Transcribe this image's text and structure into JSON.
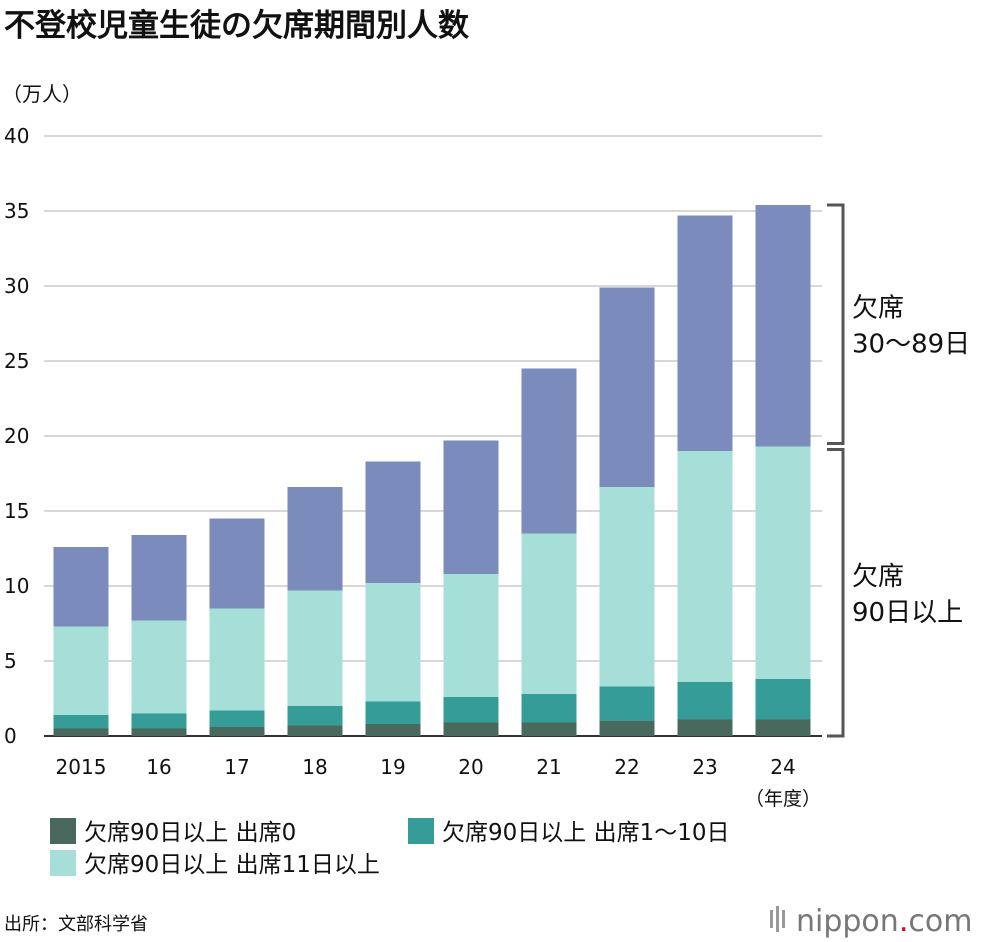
{
  "chart_data": {
    "type": "bar",
    "stacked": true,
    "title": "不登校児童生徒の欠席期間別人数",
    "ylabel": "（万人）",
    "xlabel": "",
    "ylim": [
      0,
      40
    ],
    "yticks": [
      0,
      5,
      10,
      15,
      20,
      25,
      30,
      35,
      40
    ],
    "grid": true,
    "categories": [
      "2015",
      "16",
      "17",
      "18",
      "19",
      "20",
      "21",
      "22",
      "23",
      "24"
    ],
    "category_suffix": "（年度）",
    "series": [
      {
        "name": "欠席90日以上 出席0",
        "color": "#49695f",
        "values": [
          0.5,
          0.5,
          0.6,
          0.7,
          0.8,
          0.9,
          0.9,
          1.0,
          1.1,
          1.1
        ]
      },
      {
        "name": "欠席90日以上 出席1〜10日",
        "color": "#369c98",
        "values": [
          0.9,
          1.0,
          1.1,
          1.3,
          1.5,
          1.7,
          1.9,
          2.3,
          2.5,
          2.7
        ]
      },
      {
        "name": "欠席90日以上 出席11日以上",
        "color": "#a6ded8",
        "values": [
          5.9,
          6.2,
          6.8,
          7.7,
          7.9,
          8.2,
          10.7,
          13.3,
          15.4,
          15.5
        ]
      },
      {
        "color": "#7b8bbb",
        "values": [
          5.3,
          5.7,
          6.0,
          6.9,
          8.1,
          8.9,
          11.0,
          13.3,
          15.7,
          16.1
        ]
      }
    ],
    "legend_placement": "bottom",
    "annotations": [
      {
        "line1": "欠席",
        "line2": "30〜89日"
      },
      {
        "line1": "欠席",
        "line2": "90日以上"
      }
    ],
    "source": "出所：文部科学省"
  },
  "brand": {
    "logo_text": "nippon.com"
  }
}
